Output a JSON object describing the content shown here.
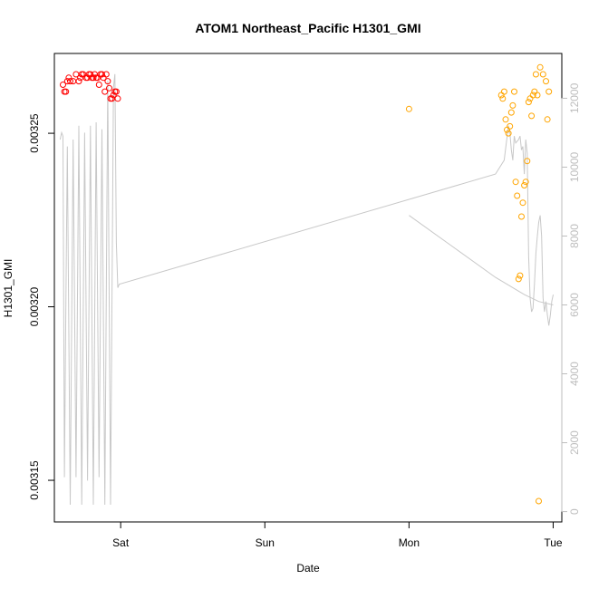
{
  "chart_data": {
    "type": "scatter",
    "title": "ATOM1 Northeast_Pacific H1301_GMI",
    "xlabel": "Date",
    "ylabel": "H1301_GMI",
    "x_ticks": [
      "Sat",
      "Sun",
      "Mon",
      "Tue"
    ],
    "x_tick_values": [
      1.0,
      2.0,
      3.0,
      4.0
    ],
    "xlim": [
      0.54,
      4.06
    ],
    "ylim": [
      0.003138,
      0.003273
    ],
    "y_ticks": [
      0.00315,
      0.0032,
      0.00325
    ],
    "y_tick_labels": [
      "0.00315",
      "0.00320",
      "0.00325"
    ],
    "y2lim": [
      -300,
      13300
    ],
    "y2_ticks": [
      0,
      2000,
      4000,
      6000,
      8000,
      10000,
      12000
    ],
    "y2_tick_labels": [
      "0",
      "2000",
      "4000",
      "6000",
      "8000",
      "10000",
      "12000"
    ],
    "grid": false,
    "colors": {
      "series_red": "#ff0000",
      "series_orange": "#ffa500",
      "altitude_line": "#c8c8c8"
    },
    "series": [
      {
        "color_key": "series_red",
        "marker": "open-circle",
        "x": [
          0.6,
          0.61,
          0.62,
          0.63,
          0.64,
          0.65,
          0.67,
          0.69,
          0.71,
          0.72,
          0.73,
          0.74,
          0.76,
          0.77,
          0.78,
          0.79,
          0.8,
          0.81,
          0.82,
          0.83,
          0.84,
          0.85,
          0.86,
          0.87,
          0.88,
          0.89,
          0.9,
          0.91,
          0.92,
          0.93,
          0.94,
          0.95,
          0.96,
          0.97,
          0.98
        ],
        "y": [
          0.003264,
          0.003262,
          0.003262,
          0.003265,
          0.003266,
          0.003265,
          0.003265,
          0.003267,
          0.003265,
          0.003266,
          0.003267,
          0.003267,
          0.003266,
          0.003266,
          0.003267,
          0.003267,
          0.003266,
          0.003266,
          0.003267,
          0.003266,
          0.003266,
          0.003264,
          0.003267,
          0.003267,
          0.003266,
          0.003262,
          0.003267,
          0.003265,
          0.003263,
          0.00326,
          0.00326,
          0.003261,
          0.003262,
          0.003262,
          0.00326
        ]
      },
      {
        "color_key": "series_orange",
        "marker": "open-circle",
        "x": [
          3.0,
          3.64,
          3.65,
          3.66,
          3.67,
          3.68,
          3.69,
          3.7,
          3.71,
          3.72,
          3.73,
          3.74,
          3.75,
          3.76,
          3.77,
          3.78,
          3.79,
          3.8,
          3.81,
          3.82,
          3.83,
          3.84,
          3.85,
          3.86,
          3.87,
          3.88,
          3.89,
          3.9,
          3.91,
          3.93,
          3.95,
          3.96,
          3.97
        ],
        "y": [
          0.003257,
          0.003261,
          0.00326,
          0.003262,
          0.003254,
          0.003251,
          0.00325,
          0.003252,
          0.003256,
          0.003258,
          0.003262,
          0.003236,
          0.003232,
          0.003208,
          0.003209,
          0.003226,
          0.00323,
          0.003235,
          0.003236,
          0.003242,
          0.003259,
          0.00326,
          0.003255,
          0.003261,
          0.003262,
          0.003267,
          0.003261,
          0.003144,
          0.003269,
          0.003267,
          0.003265,
          0.003254,
          0.003262
        ]
      }
    ],
    "secondary_line": {
      "color_key": "altitude_line",
      "axis": "right",
      "x": [
        0.58,
        0.59,
        0.6,
        0.61,
        0.62,
        0.63,
        0.65,
        0.67,
        0.69,
        0.71,
        0.73,
        0.75,
        0.77,
        0.79,
        0.81,
        0.83,
        0.85,
        0.87,
        0.89,
        0.91,
        0.93,
        0.95,
        0.96,
        0.97,
        0.98,
        0.99,
        3.6,
        3.66,
        3.69,
        3.7,
        3.71,
        3.72,
        3.73,
        3.74,
        3.76,
        3.77,
        3.78,
        3.79,
        3.8,
        3.81,
        3.82,
        3.83,
        3.84,
        3.85,
        3.86,
        3.87,
        3.88,
        3.89,
        3.9,
        3.91,
        3.92,
        3.93,
        3.94,
        3.95,
        3.96,
        3.97,
        3.98,
        3.99,
        4.0
      ],
      "y": [
        10800,
        11000,
        10900,
        1000,
        6000,
        10600,
        200,
        10800,
        1000,
        11200,
        200,
        11000,
        900,
        11200,
        200,
        11300,
        1000,
        11100,
        200,
        12500,
        200,
        12300,
        12700,
        7800,
        6500,
        6600,
        9800,
        10200,
        11200,
        11000,
        10500,
        10200,
        10900,
        10700,
        10800,
        10900,
        10500,
        10600,
        9800,
        10800,
        10400,
        7400,
        6200,
        5800,
        5900,
        6600,
        7500,
        8000,
        8400,
        8600,
        8000,
        6200,
        5800,
        6100,
        5700,
        5400,
        5700,
        6100,
        6300
      ]
    },
    "secondary_line2": {
      "color_key": "altitude_line",
      "axis": "right",
      "x": [
        3.0,
        3.3,
        3.6,
        3.8,
        3.9,
        4.0
      ],
      "y": [
        8600,
        7700,
        6800,
        6300,
        6100,
        6000
      ]
    }
  }
}
